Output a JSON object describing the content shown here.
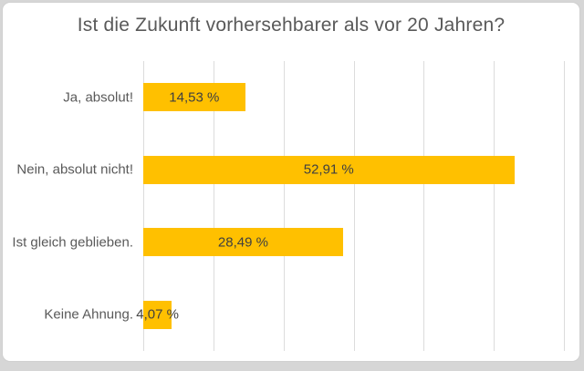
{
  "window": {
    "background_color": "#d6d6d6",
    "card_background": "#ffffff",
    "card_border_color": "#d0d0d0"
  },
  "chart_data": {
    "type": "bar",
    "orientation": "horizontal",
    "title": "Ist die Zukunft vorhersehbarer als vor 20 Jahren?",
    "categories": [
      "Ja, absolut!",
      "Nein, absolut nicht!",
      "Ist gleich geblieben.",
      "Keine Ahnung."
    ],
    "values": [
      14.53,
      52.91,
      28.49,
      4.07
    ],
    "value_labels": [
      "14,53 %",
      "52,91 %",
      "28,49 %",
      "4,07 %"
    ],
    "xlim": [
      0,
      60
    ],
    "grid_step": 10,
    "grid": "vertical-only",
    "axis_tick_labels": "none",
    "legend_position": "none",
    "bar_color": "#FFC000",
    "value_label_color": "#404040",
    "category_label_color": "#595959",
    "title_color": "#595959",
    "gridline_color": "#dcdcdc"
  }
}
